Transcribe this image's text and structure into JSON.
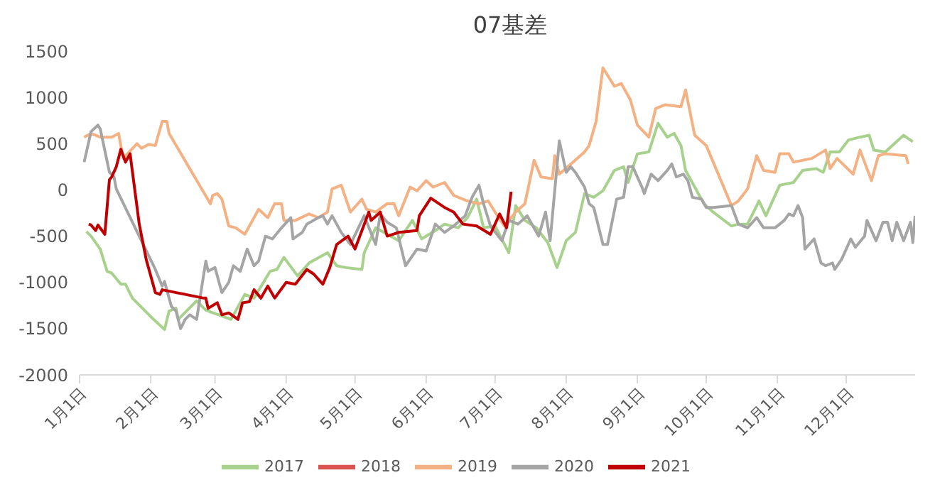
{
  "chart_data": {
    "type": "line",
    "title": "07基差",
    "xlim": [
      "--01-01",
      "--12-31"
    ],
    "xticks": [
      {
        "value": "--01-01",
        "label": "1月1日"
      },
      {
        "value": "--02-01",
        "label": "2月1日"
      },
      {
        "value": "--03-01",
        "label": "3月1日"
      },
      {
        "value": "--04-01",
        "label": "4月1日"
      },
      {
        "value": "--05-01",
        "label": "5月1日"
      },
      {
        "value": "--06-01",
        "label": "6月1日"
      },
      {
        "value": "--07-01",
        "label": "7月1日"
      },
      {
        "value": "--08-01",
        "label": "8月1日"
      },
      {
        "value": "--09-01",
        "label": "9月1日"
      },
      {
        "value": "--10-01",
        "label": "10月1日"
      },
      {
        "value": "--11-01",
        "label": "11月1日"
      },
      {
        "value": "--12-01",
        "label": "12月1日"
      }
    ],
    "ylim": [
      -2000,
      1500
    ],
    "yticks": [
      -2000,
      -1500,
      -1000,
      -500,
      0,
      500,
      1000,
      1500
    ],
    "grid": false,
    "legend": "bottom",
    "marker": "none",
    "line_style": "solid",
    "series": [
      {
        "name": "2017",
        "color": "#a9d18e",
        "x": [
          "--01-04",
          "--01-06",
          "--01-10",
          "--01-13",
          "--01-15",
          "--01-19",
          "--01-21",
          "--01-24",
          "--02-01",
          "--02-07",
          "--02-09",
          "--02-12",
          "--02-13",
          "--02-21",
          "--02-25",
          "--03-08",
          "--03-14",
          "--03-18",
          "--03-25",
          "--03-28",
          "--03-31",
          "--04-06",
          "--04-11",
          "--04-19",
          "--04-23",
          "--04-27",
          "--05-04",
          "--05-05",
          "--05-10",
          "--05-20",
          "--05-26",
          "--05-30",
          "--06-05",
          "--06-09",
          "--06-15",
          "--06-19",
          "--06-23",
          "--06-26",
          "--07-01",
          "--07-07",
          "--07-10",
          "--07-14",
          "--07-19",
          "--07-24",
          "--07-28",
          "--08-01",
          "--08-05",
          "--08-09",
          "--08-13",
          "--08-17",
          "--08-22",
          "--08-26",
          "--08-28",
          "--09-01",
          "--09-06",
          "--09-10",
          "--09-14",
          "--09-17",
          "--09-20",
          "--09-22",
          "--09-26",
          "--09-30",
          "--10-04",
          "--10-12",
          "--10-15",
          "--10-19",
          "--10-24",
          "--10-27",
          "--11-02",
          "--11-08",
          "--11-12",
          "--11-18",
          "--11-21",
          "--11-24",
          "--11-28",
          "--12-02",
          "--12-07",
          "--12-11",
          "--12-13",
          "--12-18",
          "--12-22",
          "--12-26",
          "--12-30"
        ],
        "values": [
          -450,
          -500,
          -640,
          -880,
          -900,
          -1020,
          -1020,
          -1170,
          -1370,
          -1510,
          -1310,
          -1280,
          -1400,
          -1200,
          -1300,
          -1400,
          -1130,
          -1170,
          -880,
          -860,
          -730,
          -930,
          -790,
          -680,
          -820,
          -840,
          -860,
          -680,
          -410,
          -550,
          -330,
          -530,
          -440,
          -370,
          -410,
          -300,
          -100,
          -410,
          -390,
          -680,
          -170,
          -330,
          -410,
          -570,
          -840,
          -550,
          -460,
          -40,
          -80,
          -10,
          210,
          250,
          80,
          390,
          410,
          720,
          570,
          610,
          480,
          210,
          30,
          -150,
          -240,
          -390,
          -370,
          -370,
          -120,
          -280,
          50,
          80,
          210,
          230,
          190,
          410,
          410,
          540,
          570,
          590,
          430,
          410,
          500,
          590,
          520
        ]
      },
      {
        "name": "2018",
        "color": "#d9534f"
      },
      {
        "name": "2019",
        "color": "#f4b183",
        "x": [
          "--01-03",
          "--01-06",
          "--01-10",
          "--01-15",
          "--01-18",
          "--01-20",
          "--01-26",
          "--01-28",
          "--01-31",
          "--02-03",
          "--02-06",
          "--02-08",
          "--02-09",
          "--02-27",
          "--02-28",
          "--03-02",
          "--03-04",
          "--03-07",
          "--03-10",
          "--03-14",
          "--03-20",
          "--03-24",
          "--03-27",
          "--03-30",
          "--03-31",
          "--04-05",
          "--04-11",
          "--04-15",
          "--04-19",
          "--04-21",
          "--04-25",
          "--04-29",
          "--05-04",
          "--05-06",
          "--05-10",
          "--05-15",
          "--05-18",
          "--05-20",
          "--05-25",
          "--05-28",
          "--06-01",
          "--06-04",
          "--06-09",
          "--06-13",
          "--06-19",
          "--06-24",
          "--06-28",
          "--07-01",
          "--07-05",
          "--07-10",
          "--07-14",
          "--07-18",
          "--07-21",
          "--07-26",
          "--07-27",
          "--07-29",
          "--08-04",
          "--08-09",
          "--08-11",
          "--08-14",
          "--08-17",
          "--08-22",
          "--08-25",
          "--08-29",
          "--09-01",
          "--09-06",
          "--09-09",
          "--09-13",
          "--09-20",
          "--09-22",
          "--09-26",
          "--10-01",
          "--10-12",
          "--10-15",
          "--10-19",
          "--10-23",
          "--10-26",
          "--10-31",
          "--11-02",
          "--11-06",
          "--11-08",
          "--11-16",
          "--11-22",
          "--11-24",
          "--11-27",
          "--12-04",
          "--12-07",
          "--12-12",
          "--12-15",
          "--12-18",
          "--12-27",
          "--12-28"
        ],
        "values": [
          570,
          610,
          570,
          570,
          610,
          340,
          500,
          450,
          490,
          480,
          740,
          740,
          610,
          -150,
          -60,
          -40,
          -100,
          -390,
          -410,
          -480,
          -210,
          -300,
          -150,
          -150,
          -330,
          -330,
          -260,
          -300,
          -240,
          10,
          50,
          -240,
          -100,
          -210,
          -240,
          -150,
          -150,
          -280,
          30,
          -10,
          100,
          30,
          80,
          -60,
          -120,
          -150,
          -120,
          -240,
          -390,
          -240,
          -150,
          320,
          140,
          120,
          370,
          170,
          300,
          410,
          480,
          740,
          1320,
          1120,
          1150,
          970,
          700,
          570,
          880,
          920,
          900,
          1080,
          590,
          480,
          -170,
          -120,
          10,
          370,
          210,
          190,
          390,
          390,
          300,
          340,
          430,
          230,
          340,
          170,
          430,
          100,
          370,
          390,
          370,
          280
        ]
      },
      {
        "name": "2020",
        "color": "#a5a5a5",
        "x": [
          "--01-03",
          "--01-06",
          "--01-09",
          "--01-10",
          "--01-14",
          "--01-16",
          "--01-17",
          "--02-03",
          "--02-06",
          "--02-07",
          "--02-10",
          "--02-12",
          "--02-14",
          "--02-16",
          "--02-18",
          "--02-21",
          "--02-25",
          "--02-26",
          "--03-01",
          "--03-04",
          "--03-07",
          "--03-09",
          "--03-12",
          "--03-15",
          "--03-18",
          "--03-20",
          "--03-23",
          "--03-26",
          "--03-30",
          "--04-03",
          "--04-04",
          "--04-08",
          "--04-10",
          "--04-15",
          "--04-17",
          "--04-19",
          "--04-21",
          "--04-25",
          "--04-29",
          "--05-05",
          "--05-10",
          "--05-12",
          "--05-15",
          "--05-19",
          "--05-23",
          "--05-28",
          "--06-01",
          "--06-05",
          "--06-09",
          "--06-13",
          "--06-18",
          "--06-21",
          "--06-24",
          "--06-26",
          "--06-29",
          "--07-04",
          "--07-07",
          "--07-11",
          "--07-15",
          "--07-20",
          "--07-23",
          "--07-25",
          "--07-26",
          "--07-29",
          "--08-01",
          "--08-03",
          "--08-05",
          "--08-09",
          "--08-11",
          "--08-13",
          "--08-17",
          "--08-19",
          "--08-23",
          "--08-26",
          "--08-28",
          "--08-30",
          "--09-03",
          "--09-04",
          "--09-07",
          "--09-10",
          "--09-14",
          "--09-16",
          "--09-18",
          "--09-21",
          "--09-23",
          "--09-25",
          "--09-29",
          "--10-01",
          "--10-04",
          "--10-12",
          "--10-15",
          "--10-19",
          "--10-23",
          "--10-26",
          "--10-31",
          "--11-04",
          "--11-06",
          "--11-08",
          "--11-10",
          "--11-12",
          "--11-13",
          "--11-17",
          "--11-20",
          "--11-22",
          "--11-25",
          "--11-26",
          "--11-29",
          "--12-03",
          "--12-05",
          "--12-09",
          "--12-10",
          "--12-14",
          "--12-17",
          "--12-19",
          "--12-21",
          "--12-23",
          "--12-26",
          "--12-29",
          "--12-30",
          "--12-31"
        ],
        "values": [
          300,
          630,
          700,
          660,
          190,
          140,
          10,
          -860,
          -1040,
          -990,
          -1260,
          -1310,
          -1500,
          -1400,
          -1350,
          -1400,
          -770,
          -880,
          -840,
          -1110,
          -1000,
          -820,
          -880,
          -640,
          -820,
          -770,
          -500,
          -530,
          -410,
          -300,
          -530,
          -460,
          -370,
          -300,
          -280,
          -370,
          -280,
          -460,
          -590,
          -280,
          -590,
          -260,
          -350,
          -410,
          -820,
          -640,
          -660,
          -370,
          -460,
          -390,
          -280,
          -80,
          50,
          -150,
          -390,
          -550,
          -330,
          -370,
          -280,
          -500,
          -240,
          -550,
          -280,
          530,
          190,
          250,
          190,
          30,
          -150,
          -190,
          -590,
          -590,
          -100,
          -80,
          250,
          250,
          30,
          -40,
          170,
          100,
          210,
          280,
          140,
          170,
          100,
          -80,
          -100,
          -190,
          -190,
          -170,
          -370,
          -410,
          -300,
          -410,
          -410,
          -330,
          -260,
          -280,
          -170,
          -300,
          -640,
          -530,
          -790,
          -820,
          -790,
          -860,
          -750,
          -530,
          -620,
          -500,
          -330,
          -550,
          -350,
          -350,
          -550,
          -350,
          -550,
          -350,
          -570,
          -280
        ]
      },
      {
        "name": "2021",
        "color": "#c00000",
        "x": [
          "--01-05",
          "--01-06",
          "--01-08",
          "--01-09",
          "--01-12",
          "--01-14",
          "--01-15",
          "--01-17",
          "--01-19",
          "--01-21",
          "--01-23",
          "--01-25",
          "--01-27",
          "--01-30",
          "--02-03",
          "--02-05",
          "--02-06",
          "--02-24",
          "--02-25",
          "--02-26",
          "--03-02",
          "--03-04",
          "--03-07",
          "--03-11",
          "--03-13",
          "--03-16",
          "--03-18",
          "--03-21",
          "--03-24",
          "--03-27",
          "--04-01",
          "--04-05",
          "--04-10",
          "--04-13",
          "--04-17",
          "--04-20",
          "--04-23",
          "--04-28",
          "--05-01",
          "--05-07",
          "--05-08",
          "--05-12",
          "--05-15",
          "--05-20",
          "--05-28",
          "--05-29",
          "--06-03",
          "--06-09",
          "--06-13",
          "--06-17",
          "--06-23",
          "--06-29",
          "--07-03",
          "--07-06",
          "--07-08"
        ],
        "values": [
          -370,
          -380,
          -440,
          -380,
          -480,
          110,
          140,
          250,
          440,
          300,
          390,
          10,
          -370,
          -750,
          -1110,
          -1130,
          -1080,
          -1170,
          -1170,
          -1280,
          -1220,
          -1350,
          -1330,
          -1400,
          -1220,
          -1210,
          -1080,
          -1170,
          -1040,
          -1170,
          -1000,
          -1020,
          -860,
          -910,
          -1020,
          -840,
          -590,
          -500,
          -640,
          -240,
          -330,
          -240,
          -500,
          -460,
          -440,
          -280,
          -90,
          -190,
          -240,
          -370,
          -390,
          -480,
          -260,
          -410,
          -20
        ]
      }
    ]
  }
}
